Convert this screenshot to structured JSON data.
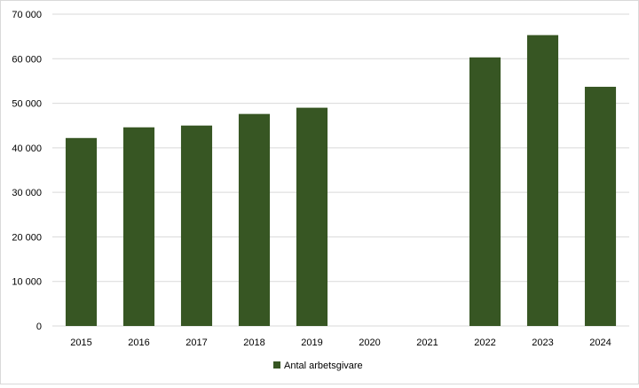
{
  "colors": {
    "bar": "#375623",
    "grid": "#d9d9d9",
    "border": "#d9d9d9",
    "text": "#000000"
  },
  "chart_data": {
    "type": "bar",
    "title": "",
    "xlabel": "",
    "ylabel": "",
    "categories": [
      "2015",
      "2016",
      "2017",
      "2018",
      "2019",
      "2020",
      "2021",
      "2022",
      "2023",
      "2024"
    ],
    "series": [
      {
        "name": "Antal arbetsgivare",
        "values": [
          42200,
          44600,
          45000,
          47600,
          49000,
          null,
          null,
          60300,
          65300,
          53700
        ]
      }
    ],
    "ylim": [
      0,
      70000
    ],
    "y_ticks": [
      0,
      10000,
      20000,
      30000,
      40000,
      50000,
      60000,
      70000
    ],
    "y_tick_labels": [
      "0",
      "10 000",
      "20 000",
      "30 000",
      "40 000",
      "50 000",
      "60 000",
      "70 000"
    ],
    "grid": true,
    "legend_position": "bottom"
  }
}
